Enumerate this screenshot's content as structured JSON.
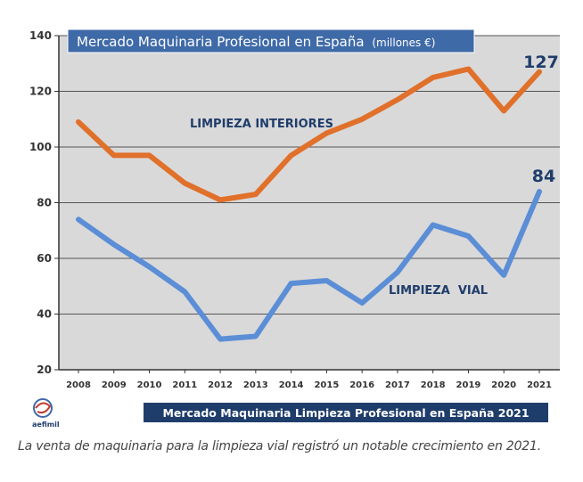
{
  "chart_data": {
    "type": "line",
    "title": "Mercado Maquinaria Profesional en España",
    "title_unit": "(millones €)",
    "x": [
      "2008",
      "2009",
      "2010",
      "2011",
      "2012",
      "2013",
      "2014",
      "2015",
      "2016",
      "2017",
      "2018",
      "2019",
      "2020",
      "2021"
    ],
    "ylim": [
      20,
      140
    ],
    "yticks": [
      "20",
      "40",
      "60",
      "80",
      "100",
      "120",
      "140"
    ],
    "grid": true,
    "series": [
      {
        "name": "LIMPIEZA INTERIORES",
        "color": "#e0702a",
        "values": [
          109,
          97,
          97,
          87,
          81,
          83,
          97,
          105,
          110,
          117,
          125,
          128,
          113,
          127
        ],
        "end_label": "127"
      },
      {
        "name": "LIMPIEZA  VIAL",
        "color": "#5b8ed6",
        "values": [
          74,
          65,
          57,
          48,
          31,
          32,
          51,
          52,
          44,
          55,
          72,
          68,
          54,
          84
        ],
        "end_label": "84"
      }
    ]
  },
  "banner": "Mercado Maquinaria Limpieza Profesional en España 2021",
  "logo_text": "aefimil",
  "caption": "La venta de maquinaria para la limpieza vial registró un notable crecimiento en 2021.",
  "colors": {
    "plot_bg": "#d9d9d9",
    "title_bg": "#3f6aa8",
    "banner_bg": "#1f3d6b",
    "label_color": "#1f3d6b"
  }
}
